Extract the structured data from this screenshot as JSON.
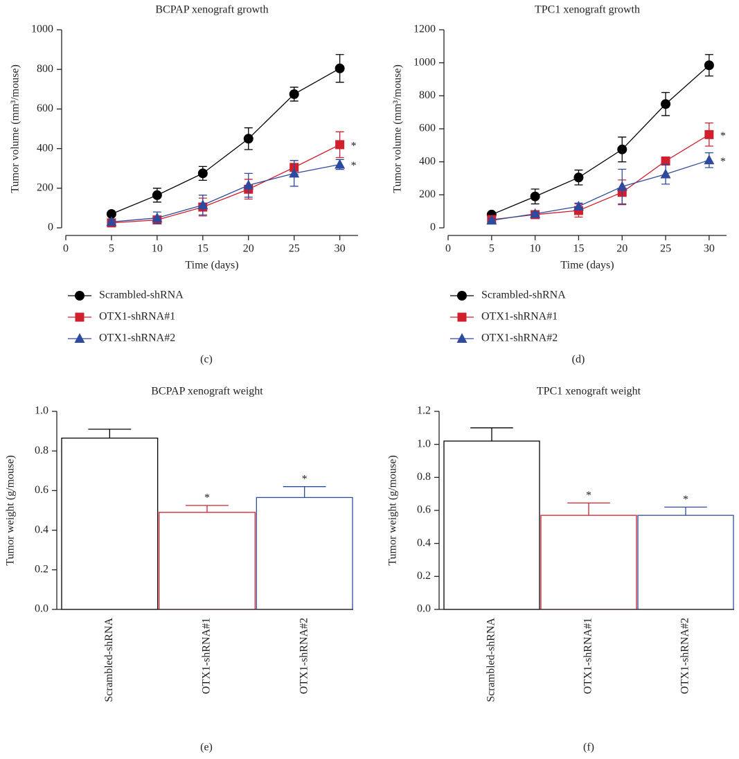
{
  "chart_data": [
    {
      "type": "line",
      "title": "BCPAP xenograft growth",
      "panel": "(c)",
      "x_label": "Time (days)",
      "y_label": "Tumor volume (mm³/mouse)",
      "x": [
        5,
        10,
        15,
        20,
        25,
        30
      ],
      "xlim": [
        0,
        32
      ],
      "xticks": [
        0,
        5,
        10,
        15,
        20,
        25,
        30
      ],
      "ylim": [
        0,
        1000
      ],
      "yticks": [
        0,
        200,
        400,
        600,
        800,
        1000
      ],
      "series": [
        {
          "name": "Scrambled-shRNA",
          "color": "#000000",
          "marker": "circle",
          "values": [
            70,
            165,
            275,
            450,
            675,
            805
          ],
          "errors": [
            10,
            35,
            35,
            55,
            35,
            70
          ]
        },
        {
          "name": "OTX1-shRNA#1",
          "color": "#d0202e",
          "marker": "square",
          "values": [
            25,
            40,
            105,
            195,
            305,
            420
          ],
          "errors": [
            10,
            15,
            45,
            50,
            35,
            65
          ],
          "annotation": "*"
        },
        {
          "name": "OTX1-shRNA#2",
          "color": "#2e4a9e",
          "marker": "triangle",
          "values": [
            30,
            50,
            115,
            215,
            275,
            320
          ],
          "errors": [
            10,
            30,
            50,
            60,
            65,
            25
          ],
          "annotation": "*"
        }
      ]
    },
    {
      "type": "line",
      "title": "TPC1 xenograft growth",
      "panel": "(d)",
      "x_label": "Time (days)",
      "y_label": "Tumor volume (mm³/mouse)",
      "x": [
        5,
        10,
        15,
        20,
        25,
        30
      ],
      "xlim": [
        0,
        32
      ],
      "xticks": [
        0,
        5,
        10,
        15,
        20,
        25,
        30
      ],
      "ylim": [
        0,
        1200
      ],
      "yticks": [
        0,
        200,
        400,
        600,
        800,
        1000,
        1200
      ],
      "series": [
        {
          "name": "Scrambled-shRNA",
          "color": "#000000",
          "marker": "circle",
          "values": [
            80,
            190,
            305,
            475,
            750,
            985
          ],
          "errors": [
            10,
            45,
            45,
            75,
            70,
            65
          ]
        },
        {
          "name": "OTX1-shRNA#1",
          "color": "#d0202e",
          "marker": "square",
          "values": [
            50,
            80,
            105,
            215,
            405,
            565
          ],
          "errors": [
            10,
            10,
            40,
            75,
            15,
            70
          ],
          "annotation": "*"
        },
        {
          "name": "OTX1-shRNA#2",
          "color": "#2e4a9e",
          "marker": "triangle",
          "values": [
            45,
            85,
            130,
            250,
            325,
            410
          ],
          "errors": [
            10,
            10,
            20,
            105,
            60,
            45
          ],
          "annotation": "*"
        }
      ]
    },
    {
      "type": "bar",
      "title": "BCPAP xenograft weight",
      "panel": "(e)",
      "y_label": "Tumor weight (g/mouse)",
      "categories": [
        "Scrambled-shRNA",
        "OTX1-shRNA#1",
        "OTX1-shRNA#2"
      ],
      "values": [
        0.865,
        0.49,
        0.565
      ],
      "errors": [
        0.045,
        0.035,
        0.055
      ],
      "colors": [
        "#000000",
        "#d0202e",
        "#2e4a9e"
      ],
      "annotations": [
        {
          "category": "OTX1-shRNA#1",
          "text": "*"
        },
        {
          "category": "OTX1-shRNA#2",
          "text": "*"
        }
      ],
      "ylim": [
        0,
        1.0
      ],
      "yticks": [
        {
          "value": 0,
          "label": "0.0"
        },
        0.2,
        0.4,
        0.6,
        0.8,
        {
          "value": 1,
          "label": "1.0"
        }
      ]
    },
    {
      "type": "bar",
      "title": "TPC1 xenograft weight",
      "panel": "(f)",
      "y_label": "Tumor weight (g/mouse)",
      "categories": [
        "Scrambled-shRNA",
        "OTX1-shRNA#1",
        "OTX1-shRNA#2"
      ],
      "values": [
        1.02,
        0.57,
        0.57
      ],
      "errors": [
        0.08,
        0.075,
        0.05
      ],
      "colors": [
        "#000000",
        "#d0202e",
        "#2e4a9e"
      ],
      "annotations": [
        {
          "category": "OTX1-shRNA#1",
          "text": "*"
        },
        {
          "category": "OTX1-shRNA#2",
          "text": "*"
        }
      ],
      "ylim": [
        0,
        1.2
      ],
      "yticks": [
        {
          "value": 0,
          "label": "0.0"
        },
        0.2,
        0.4,
        0.6,
        0.8,
        {
          "value": 1,
          "label": "1.0"
        },
        1.2
      ]
    }
  ]
}
